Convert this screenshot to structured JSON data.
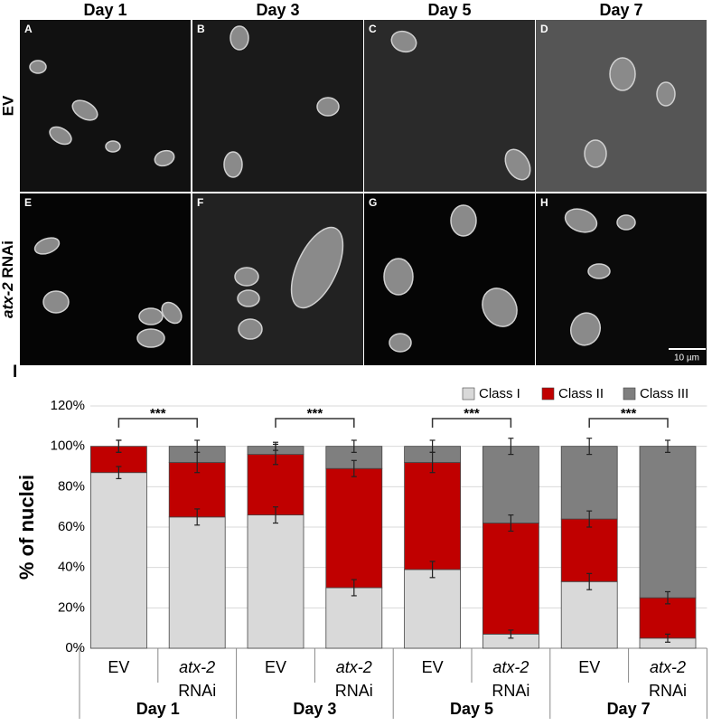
{
  "figure": {
    "columns": [
      "Day 1",
      "Day 3",
      "Day 5",
      "Day 7"
    ],
    "rows": [
      "EV",
      "atx-2 RNAi"
    ],
    "panels": [
      "A",
      "B",
      "C",
      "D",
      "E",
      "F",
      "G",
      "H"
    ],
    "scale_bar": "10 µm",
    "chart_label": "I"
  },
  "chart_data": {
    "type": "bar",
    "stacked": true,
    "ylabel": "% of nuclei",
    "categories": [
      "EV",
      "atx-2 RNAi",
      "EV",
      "atx-2 RNAi",
      "EV",
      "atx-2 RNAi",
      "EV",
      "atx-2 RNAi"
    ],
    "groups": [
      "Day 1",
      "Day 3",
      "Day 5",
      "Day 7"
    ],
    "annotations": [
      "***",
      "***",
      "***",
      "***"
    ],
    "ylim": [
      0,
      120
    ],
    "yticks": [
      {
        "value": 0,
        "label": "0%"
      },
      {
        "value": 20,
        "label": "20%"
      },
      {
        "value": 40,
        "label": "40%"
      },
      {
        "value": 60,
        "label": "60%"
      },
      {
        "value": 80,
        "label": "80%"
      },
      {
        "value": 100,
        "label": "100%"
      },
      {
        "value": 120,
        "label": "120%"
      }
    ],
    "grid": true,
    "legend": "top-right",
    "series": [
      {
        "name": "Class I",
        "color": "#d9d9d9",
        "values": [
          87,
          65,
          66,
          30,
          39,
          7,
          33,
          5
        ],
        "errors": [
          3,
          4,
          4,
          4,
          4,
          2,
          4,
          2
        ]
      },
      {
        "name": "Class II",
        "color": "#c00000",
        "values": [
          13,
          27,
          30,
          59,
          53,
          55,
          31,
          20
        ],
        "errors": [
          3,
          5,
          5,
          4,
          5,
          4,
          4,
          3
        ]
      },
      {
        "name": "Class III",
        "color": "#7f7f7f",
        "values": [
          0,
          8,
          4,
          11,
          8,
          38,
          36,
          75
        ],
        "errors": [
          3,
          3,
          2,
          3,
          3,
          4,
          4,
          3
        ]
      }
    ]
  }
}
